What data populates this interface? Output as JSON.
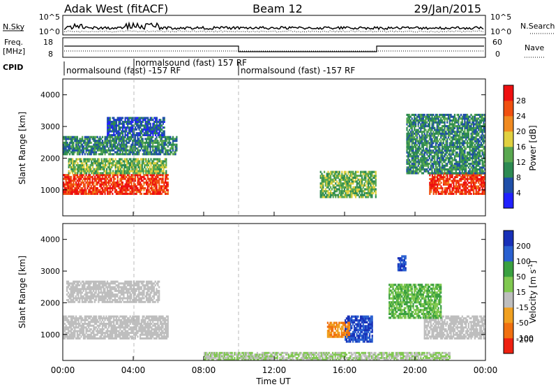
{
  "header": {
    "station": "Adak West (fitACF)",
    "beam": "Beam 12",
    "date": "29/Jan/2015"
  },
  "noise_panel": {
    "left_label": "N.Sky",
    "right_label": "N.Search",
    "left_ticks": [
      "10^5",
      "10^0"
    ],
    "right_ticks": [
      "10^5",
      "10^0"
    ]
  },
  "freq_panel": {
    "left_label_1": "Freq.",
    "left_label_2": "[MHz]",
    "right_label": "Nave",
    "left_ticks": [
      "18",
      "8"
    ],
    "right_ticks": [
      "60",
      "0"
    ]
  },
  "cpid_panel": {
    "label": "CPID",
    "segments": [
      {
        "text": "normalsound (fast) -157 RF",
        "start_ut": 0.0,
        "end_ut": 4.0
      },
      {
        "text": "normalsound (fast) 157 RF",
        "start_ut": 4.0,
        "end_ut": 10.0
      },
      {
        "text": "normalsound (fast) -157 RF",
        "start_ut": 10.0,
        "end_ut": 24.0
      }
    ]
  },
  "power_colorbar": {
    "label": "Power [dB]",
    "ticks": [
      "28",
      "24",
      "20",
      "16",
      "12",
      "8",
      "4"
    ],
    "colors": [
      "#2020ff",
      "#1f4fa8",
      "#2d8a52",
      "#5aa850",
      "#e0d040",
      "#f08a20",
      "#f05010",
      "#ee1010"
    ]
  },
  "velocity_colorbar": {
    "label": "Velocity [m s",
    "label_sup": "-1",
    "label_end": "]",
    "ticks": [
      "200",
      "100",
      "50",
      "15",
      "-15",
      "-50",
      "-100",
      "-200"
    ],
    "colors": [
      "#1830b8",
      "#2a60d0",
      "#3aa040",
      "#80c850",
      "#bebebe",
      "#f0a020",
      "#f07010",
      "#ee2010"
    ]
  },
  "axes": {
    "ylabel": "Slant Range [km]",
    "xlabel": "Time UT",
    "y_ticks": [
      "4000",
      "3000",
      "2000",
      "1000"
    ],
    "x_ticks": [
      "00:00",
      "04:00",
      "08:00",
      "12:00",
      "16:00",
      "20:00",
      "00:00"
    ]
  },
  "chart_data": [
    {
      "type": "heatmap",
      "title": "Power",
      "xlabel": "Time UT",
      "ylabel": "Slant Range [km]",
      "xlim_ut": [
        0,
        24
      ],
      "ylim_km": [
        180,
        4500
      ],
      "colorbar": "Power [dB]",
      "regions": [
        {
          "t0": 0.0,
          "t1": 6.0,
          "r0": 850,
          "r1": 1500,
          "value_db": 28
        },
        {
          "t0": 0.3,
          "t1": 5.9,
          "r0": 1500,
          "r1": 2000,
          "value_db": 14
        },
        {
          "t0": 0.0,
          "t1": 6.5,
          "r0": 2100,
          "r1": 2700,
          "value_db": 10
        },
        {
          "t0": 2.5,
          "t1": 5.8,
          "r0": 2700,
          "r1": 3300,
          "value_db": 6
        },
        {
          "t0": 14.6,
          "t1": 17.8,
          "r0": 750,
          "r1": 1600,
          "value_db": 14
        },
        {
          "t0": 20.8,
          "t1": 24.0,
          "r0": 850,
          "r1": 1550,
          "value_db": 28
        },
        {
          "t0": 19.5,
          "t1": 24.0,
          "r0": 1500,
          "r1": 3400,
          "value_db": 10
        }
      ]
    },
    {
      "type": "heatmap",
      "title": "Velocity",
      "xlabel": "Time UT",
      "ylabel": "Slant Range [km]",
      "xlim_ut": [
        0,
        24
      ],
      "ylim_km": [
        180,
        4500
      ],
      "colorbar": "Velocity [m s-1]",
      "regions": [
        {
          "t0": 0.0,
          "t1": 6.0,
          "r0": 850,
          "r1": 1600,
          "value_ms": 0
        },
        {
          "t0": 0.2,
          "t1": 5.5,
          "r0": 2000,
          "r1": 2700,
          "value_ms": 0
        },
        {
          "t0": 16.0,
          "t1": 17.6,
          "r0": 750,
          "r1": 1600,
          "value_ms": 200
        },
        {
          "t0": 15.0,
          "t1": 16.3,
          "r0": 900,
          "r1": 1400,
          "value_ms": -50
        },
        {
          "t0": 19.0,
          "t1": 19.5,
          "r0": 3000,
          "r1": 3500,
          "value_ms": 200
        },
        {
          "t0": 20.5,
          "t1": 24.0,
          "r0": 850,
          "r1": 1600,
          "value_ms": 0
        },
        {
          "t0": 18.5,
          "t1": 21.5,
          "r0": 1500,
          "r1": 2600,
          "value_ms": 50
        },
        {
          "t0": 8.0,
          "t1": 22.0,
          "r0": 180,
          "r1": 450,
          "value_ms": 15
        }
      ]
    }
  ]
}
